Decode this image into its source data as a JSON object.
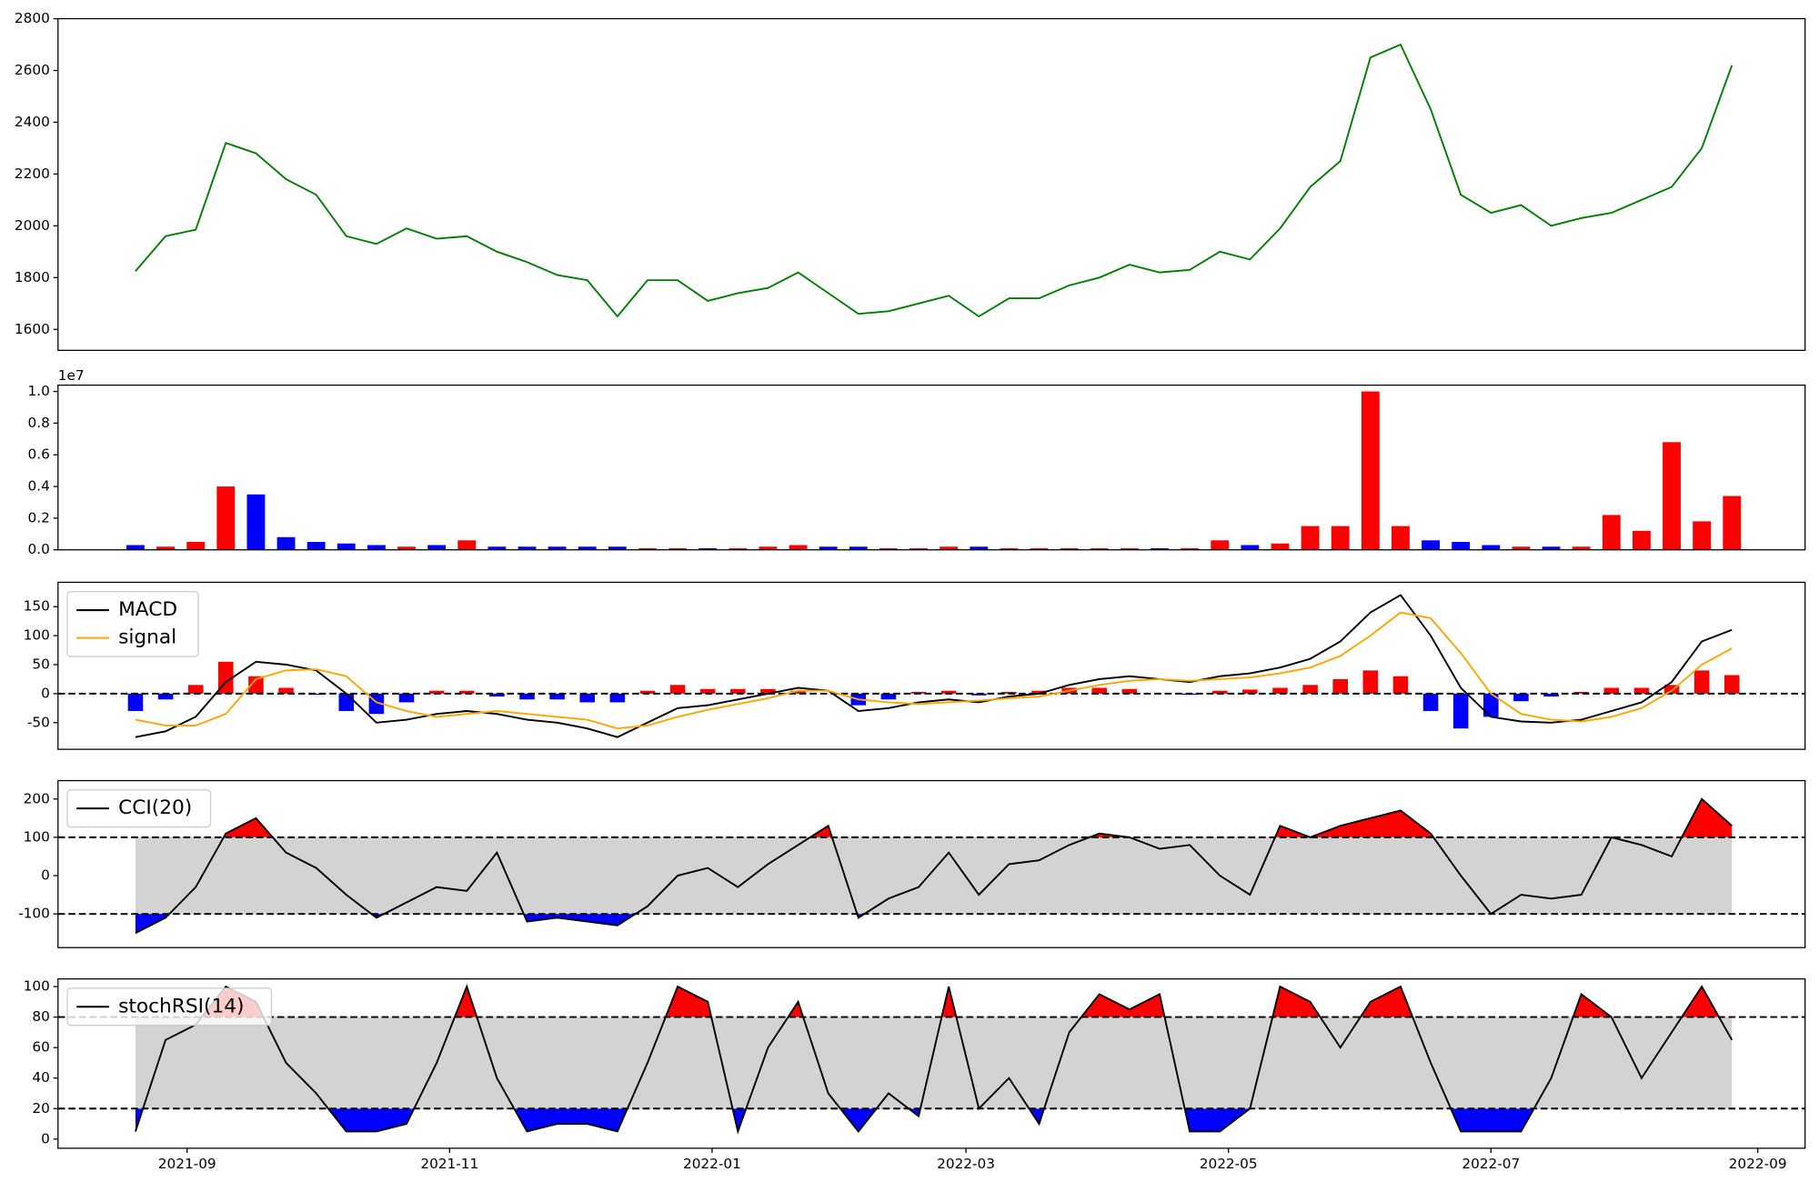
{
  "chart_data": {
    "type": "panels",
    "x": [
      "2021-08-20",
      "2021-08-27",
      "2021-09-03",
      "2021-09-10",
      "2021-09-17",
      "2021-09-24",
      "2021-10-01",
      "2021-10-08",
      "2021-10-15",
      "2021-10-22",
      "2021-10-29",
      "2021-11-05",
      "2021-11-12",
      "2021-11-19",
      "2021-11-26",
      "2021-12-03",
      "2021-12-10",
      "2021-12-17",
      "2021-12-24",
      "2021-12-31",
      "2022-01-07",
      "2022-01-14",
      "2022-01-21",
      "2022-01-28",
      "2022-02-04",
      "2022-02-11",
      "2022-02-18",
      "2022-02-25",
      "2022-03-04",
      "2022-03-11",
      "2022-03-18",
      "2022-03-25",
      "2022-04-01",
      "2022-04-08",
      "2022-04-15",
      "2022-04-22",
      "2022-04-29",
      "2022-05-06",
      "2022-05-13",
      "2022-05-20",
      "2022-05-27",
      "2022-06-03",
      "2022-06-10",
      "2022-06-17",
      "2022-06-24",
      "2022-07-01",
      "2022-07-08",
      "2022-07-15",
      "2022-07-22",
      "2022-07-29",
      "2022-08-05",
      "2022-08-12",
      "2022-08-19",
      "2022-08-26"
    ],
    "xlim": [
      "2021-08-02",
      "2022-09-12"
    ],
    "xticks": [
      {
        "value": "2021-09-01",
        "label": "2021-09"
      },
      {
        "value": "2021-11-01",
        "label": "2021-11"
      },
      {
        "value": "2022-01-01",
        "label": "2022-01"
      },
      {
        "value": "2022-03-01",
        "label": "2022-03"
      },
      {
        "value": "2022-05-01",
        "label": "2022-05"
      },
      {
        "value": "2022-07-01",
        "label": "2022-07"
      },
      {
        "value": "2022-09-01",
        "label": "2022-09"
      }
    ],
    "panels": [
      {
        "type": "line",
        "ylim": [
          1519,
          2800
        ],
        "yticks": [
          1600,
          1800,
          2000,
          2200,
          2400,
          2600,
          2800
        ],
        "series": [
          {
            "color": "green",
            "values": [
              1825,
              1960,
              1985,
              2320,
              2280,
              2180,
              2120,
              1960,
              1930,
              1990,
              1950,
              1960,
              1900,
              1860,
              1810,
              1790,
              1650,
              1790,
              1790,
              1710,
              1740,
              1760,
              1820,
              1740,
              1660,
              1670,
              1700,
              1730,
              1650,
              1720,
              1720,
              1770,
              1800,
              1850,
              1820,
              1830,
              1900,
              1870,
              1990,
              2150,
              2250,
              2650,
              2700,
              2450,
              2120,
              2050,
              2080,
              2000,
              2030,
              2050,
              2100,
              2150,
              2300,
              2620
            ]
          }
        ]
      },
      {
        "type": "bar",
        "offset_label": "1e7",
        "ylim": [
          0,
          1.04
        ],
        "yticks": [
          {
            "value": 0,
            "label": "0.0"
          },
          0.2,
          0.4,
          0.6,
          0.8,
          {
            "value": 1,
            "label": "1.0"
          }
        ],
        "values": [
          0.03,
          0.02,
          0.05,
          0.4,
          0.35,
          0.08,
          0.05,
          0.04,
          0.03,
          0.02,
          0.03,
          0.06,
          0.02,
          0.02,
          0.02,
          0.02,
          0.02,
          0.01,
          0.01,
          0.01,
          0.01,
          0.02,
          0.03,
          0.02,
          0.02,
          0.01,
          0.01,
          0.02,
          0.02,
          0.01,
          0.01,
          0.01,
          0.01,
          0.01,
          0.01,
          0.01,
          0.06,
          0.03,
          0.04,
          0.15,
          0.15,
          1.0,
          0.15,
          0.06,
          0.05,
          0.03,
          0.02,
          0.02,
          0.02,
          0.22,
          0.12,
          0.68,
          0.18,
          0.34
        ],
        "bar_colors": [
          "blue",
          "red",
          "red",
          "red",
          "blue",
          "blue",
          "blue",
          "blue",
          "blue",
          "red",
          "blue",
          "red",
          "blue",
          "blue",
          "blue",
          "blue",
          "blue",
          "red",
          "red",
          "blue",
          "red",
          "red",
          "red",
          "blue",
          "blue",
          "red",
          "red",
          "red",
          "blue",
          "red",
          "red",
          "red",
          "red",
          "red",
          "blue",
          "red",
          "red",
          "blue",
          "red",
          "red",
          "red",
          "red",
          "red",
          "blue",
          "blue",
          "blue",
          "red",
          "blue",
          "red",
          "red",
          "red",
          "red",
          "red",
          "red"
        ]
      },
      {
        "type": "macd",
        "ylim": [
          -96,
          192
        ],
        "yticks": [
          -50,
          0,
          50,
          100,
          150
        ],
        "hlines": [
          0
        ],
        "legend": "upper left",
        "series": [
          {
            "name": "MACD",
            "color": "black",
            "values": [
              -75,
              -65,
              -40,
              20,
              55,
              50,
              40,
              0,
              -50,
              -45,
              -35,
              -30,
              -35,
              -45,
              -50,
              -60,
              -75,
              -50,
              -25,
              -20,
              -10,
              0,
              10,
              5,
              -30,
              -25,
              -15,
              -10,
              -15,
              -5,
              0,
              15,
              25,
              30,
              25,
              20,
              30,
              35,
              45,
              60,
              90,
              140,
              170,
              100,
              10,
              -40,
              -48,
              -50,
              -45,
              -30,
              -15,
              20,
              90,
              110
            ]
          },
          {
            "name": "signal",
            "color": "orange",
            "values": [
              -45,
              -55,
              -55,
              -35,
              25,
              40,
              42,
              30,
              -15,
              -30,
              -40,
              -35,
              -30,
              -35,
              -40,
              -45,
              -60,
              -55,
              -40,
              -28,
              -18,
              -8,
              5,
              5,
              -10,
              -15,
              -18,
              -15,
              -12,
              -8,
              -5,
              5,
              15,
              22,
              25,
              22,
              25,
              28,
              35,
              45,
              65,
              100,
              140,
              130,
              70,
              0,
              -35,
              -45,
              -48,
              -40,
              -25,
              5,
              50,
              78
            ]
          }
        ],
        "histogram": {
          "positive_color": "red",
          "negative_color": "blue",
          "values": [
            -30,
            -10,
            15,
            55,
            30,
            10,
            -2,
            -30,
            -35,
            -15,
            5,
            5,
            -5,
            -10,
            -10,
            -15,
            -15,
            5,
            15,
            8,
            8,
            8,
            5,
            0,
            -20,
            -10,
            3,
            5,
            -3,
            3,
            5,
            10,
            10,
            8,
            0,
            -2,
            5,
            7,
            10,
            15,
            25,
            40,
            30,
            -30,
            -60,
            -40,
            -13,
            -5,
            3,
            10,
            10,
            15,
            40,
            32
          ]
        }
      },
      {
        "type": "band",
        "ylim": [
          -188,
          248
        ],
        "yticks": [
          -100,
          0,
          100,
          200
        ],
        "hlines": [
          100,
          -100
        ],
        "legend": "upper left",
        "band_fill": "lightgray",
        "above_color": "red",
        "below_color": "blue",
        "series": [
          {
            "name": "CCI(20)",
            "color": "black",
            "values": [
              -150,
              -110,
              -30,
              110,
              150,
              60,
              20,
              -50,
              -110,
              -70,
              -30,
              -40,
              60,
              -120,
              -110,
              -120,
              -130,
              -80,
              0,
              20,
              -30,
              30,
              80,
              130,
              -110,
              -60,
              -30,
              60,
              -50,
              30,
              40,
              80,
              110,
              100,
              70,
              80,
              0,
              -50,
              130,
              100,
              130,
              150,
              170,
              110,
              0,
              -100,
              -50,
              -60,
              -50,
              100,
              80,
              50,
              200,
              130
            ]
          }
        ]
      },
      {
        "type": "band",
        "ylim": [
          -6,
          105
        ],
        "yticks": [
          0,
          20,
          40,
          60,
          80,
          100
        ],
        "hlines": [
          80,
          20
        ],
        "legend": "upper left",
        "band_fill": "lightgray",
        "above_color": "red",
        "below_color": "blue",
        "series": [
          {
            "name": "stochRSI(14)",
            "color": "black",
            "values": [
              5,
              65,
              75,
              100,
              90,
              50,
              30,
              5,
              5,
              10,
              50,
              100,
              40,
              5,
              10,
              10,
              5,
              50,
              100,
              90,
              5,
              60,
              90,
              30,
              5,
              30,
              15,
              100,
              20,
              40,
              10,
              70,
              95,
              85,
              95,
              5,
              5,
              20,
              100,
              90,
              60,
              90,
              100,
              50,
              5,
              5,
              5,
              40,
              95,
              80,
              40,
              70,
              100,
              65
            ]
          }
        ]
      }
    ]
  }
}
